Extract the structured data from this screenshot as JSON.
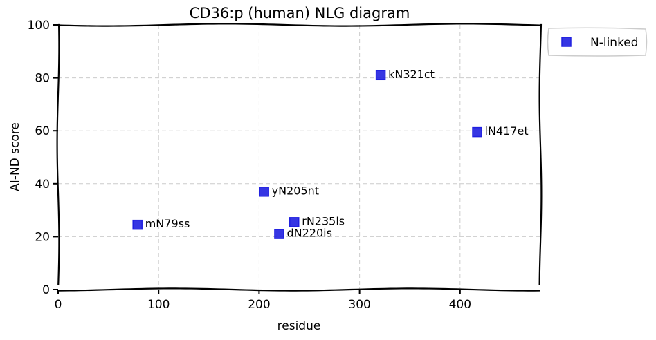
{
  "chart_data": {
    "type": "scatter",
    "title": "CD36:p (human) NLG diagram",
    "xlabel": "residue",
    "ylabel": "AI-ND score",
    "xlim": [
      0,
      480
    ],
    "ylim": [
      0,
      100
    ],
    "xticks": [
      0,
      100,
      200,
      300,
      400
    ],
    "yticks": [
      0,
      20,
      40,
      60,
      80,
      100
    ],
    "grid": true,
    "legend_position": "outside-top-right",
    "series": [
      {
        "name": "N-linked",
        "color": "#2020e0",
        "marker": "square",
        "points": [
          {
            "x": 79,
            "y": 24.5,
            "label": "mN79ss"
          },
          {
            "x": 205,
            "y": 37,
            "label": "yN205nt"
          },
          {
            "x": 220,
            "y": 21,
            "label": "dN220is"
          },
          {
            "x": 235,
            "y": 25.5,
            "label": "rN235ls"
          },
          {
            "x": 321,
            "y": 81,
            "label": "kN321ct"
          },
          {
            "x": 417,
            "y": 59.5,
            "label": "lN417et"
          }
        ]
      }
    ]
  }
}
